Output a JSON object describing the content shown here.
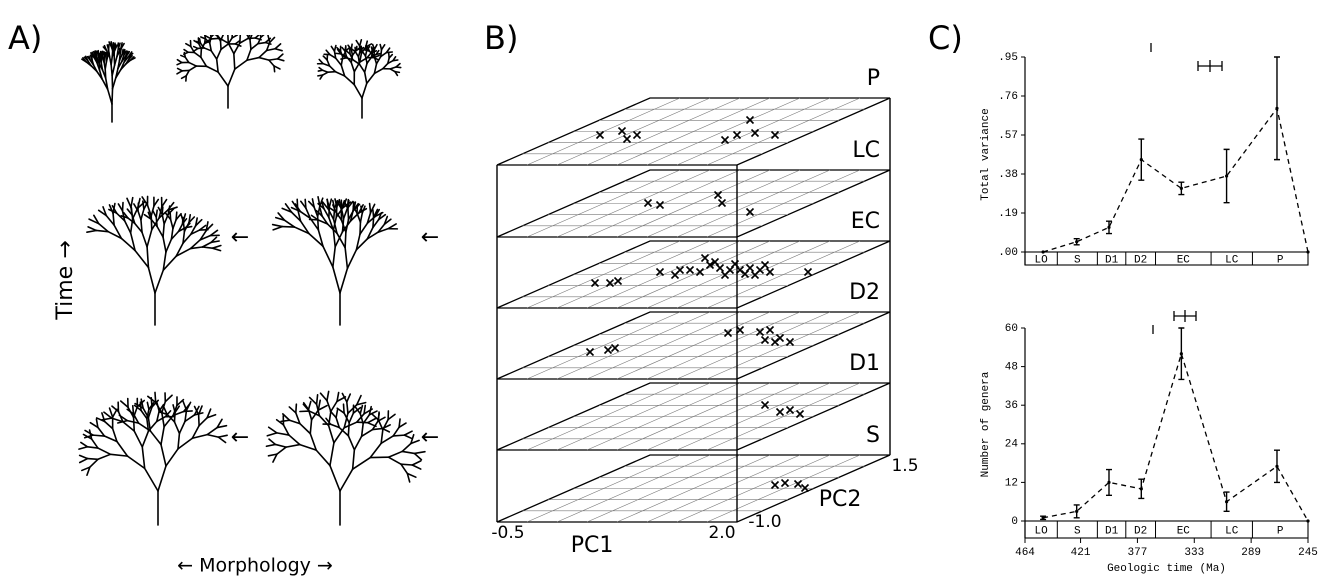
{
  "panel_a": {
    "label": "A)",
    "y_label": "Time →",
    "x_label": "← Morphology →",
    "arrows": [
      "←",
      "←",
      "←",
      "←"
    ]
  },
  "panel_b": {
    "label": "B)",
    "layers": [
      "P",
      "LC",
      "EC",
      "D2",
      "D1",
      "S"
    ],
    "x_label": "PC1",
    "y_label": "PC2",
    "x_tick_labels": [
      "-0.5",
      "2.0"
    ],
    "y_tick_labels": [
      "-1.0",
      "1.5"
    ]
  },
  "panel_c": {
    "label": "C)"
  },
  "chart_data": [
    {
      "type": "line",
      "y_label": "Total variance",
      "color": "#000000",
      "line_style": "dashed",
      "x": [
        450,
        424,
        399,
        374,
        343,
        308,
        269,
        245
      ],
      "values": [
        0,
        0.05,
        0.12,
        0.45,
        0.31,
        0.37,
        0.7,
        0
      ],
      "errors": [
        null,
        0.015,
        0.03,
        0.1,
        0.03,
        0.13,
        0.25,
        null
      ],
      "xlim": [
        464,
        245
      ],
      "ylim": [
        0,
        0.95
      ],
      "yticks": [
        {
          "value": 0,
          "label": ".00"
        },
        {
          "value": 0.19,
          "label": ".19"
        },
        {
          "value": 0.38,
          "label": ".38"
        },
        {
          "value": 0.57,
          "label": ".57"
        },
        {
          "value": 0.76,
          "label": ".76"
        },
        {
          "value": 0.95,
          "label": ".95"
        }
      ],
      "bands": {
        "labels": [
          "LO",
          "S",
          "D1",
          "D2",
          "EC",
          "LC",
          "P"
        ],
        "edges": [
          464,
          439,
          408,
          386,
          363,
          320,
          288,
          245
        ]
      }
    },
    {
      "type": "line",
      "y_label": "Number of genera",
      "x_label": "Geologic time (Ma)",
      "color": "#000000",
      "line_style": "dashed",
      "x": [
        450,
        424,
        399,
        374,
        343,
        308,
        269,
        245
      ],
      "values": [
        1,
        3,
        12,
        10,
        52,
        6,
        17,
        0
      ],
      "errors": [
        0.5,
        2,
        4,
        3,
        8,
        3,
        5,
        null
      ],
      "xlim": [
        464,
        245
      ],
      "ylim": [
        0,
        60
      ],
      "xticks": [
        464,
        421,
        377,
        333,
        289,
        245
      ],
      "yticks": [
        0,
        12,
        24,
        36,
        48,
        60
      ],
      "bands": {
        "labels": [
          "LO",
          "S",
          "D1",
          "D2",
          "EC",
          "LC",
          "P"
        ],
        "edges": [
          464,
          439,
          408,
          386,
          363,
          320,
          288,
          245
        ]
      }
    }
  ]
}
